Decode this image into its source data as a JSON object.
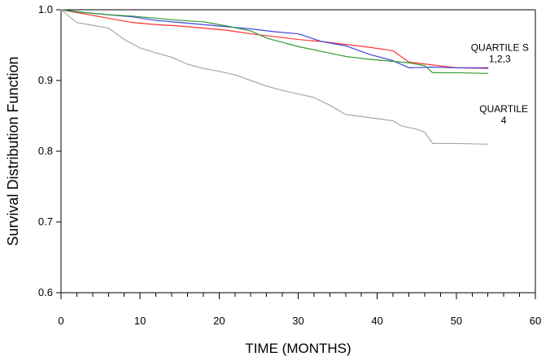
{
  "chart_data": {
    "type": "line",
    "title": "",
    "xlabel": "TIME (MONTHS)",
    "ylabel": "Survival Distribution Function",
    "xlim": [
      0,
      60
    ],
    "ylim": [
      0.6,
      1.0
    ],
    "grid": false,
    "x_major_ticks": [
      0,
      10,
      20,
      30,
      40,
      50,
      60
    ],
    "x_major_tick_labels": [
      "0",
      "10",
      "20",
      "30",
      "40",
      "50",
      "60"
    ],
    "y_major_ticks": [
      0.6,
      0.7,
      0.8,
      0.9,
      1.0
    ],
    "y_major_tick_labels": [
      "0.6",
      "0.7",
      "0.8",
      "0.9",
      "1.0"
    ],
    "annotations": [
      {
        "lines": [
          "QUARTILE S",
          "1,2,3"
        ],
        "x": 55.5,
        "y": 0.942
      },
      {
        "lines": [
          "QUARTILE",
          "4"
        ],
        "x": 56.0,
        "y": 0.855
      }
    ],
    "series": [
      {
        "color": "#ff3333",
        "x": [
          0,
          3,
          6,
          9,
          12,
          15,
          18,
          21,
          24,
          27,
          30,
          33,
          36,
          39,
          42,
          44,
          47,
          50,
          54
        ],
        "y": [
          1.0,
          0.994,
          0.988,
          0.982,
          0.979,
          0.977,
          0.974,
          0.971,
          0.966,
          0.962,
          0.958,
          0.955,
          0.951,
          0.947,
          0.942,
          0.926,
          0.922,
          0.918,
          0.917
        ]
      },
      {
        "color": "#4444dd",
        "x": [
          0,
          3,
          6,
          9,
          12,
          15,
          18,
          21,
          24,
          27,
          30,
          33,
          36,
          39,
          42,
          44,
          47,
          50,
          54
        ],
        "y": [
          1.0,
          0.996,
          0.993,
          0.99,
          0.985,
          0.982,
          0.979,
          0.976,
          0.973,
          0.969,
          0.966,
          0.955,
          0.949,
          0.937,
          0.928,
          0.918,
          0.919,
          0.918,
          0.918
        ]
      },
      {
        "color": "#339933",
        "x": [
          0,
          3,
          6,
          9,
          12,
          15,
          18,
          21,
          24,
          26,
          28,
          30,
          33,
          36,
          39,
          42,
          44,
          46,
          47,
          50,
          54
        ],
        "y": [
          1.0,
          0.996,
          0.993,
          0.991,
          0.988,
          0.985,
          0.983,
          0.977,
          0.97,
          0.96,
          0.954,
          0.948,
          0.941,
          0.934,
          0.93,
          0.927,
          0.925,
          0.921,
          0.911,
          0.911,
          0.91
        ]
      },
      {
        "color": "#a8a8a8",
        "x": [
          0,
          2,
          4,
          6,
          8,
          10,
          12,
          14,
          16,
          18,
          20,
          22,
          24,
          26,
          28,
          30,
          32,
          34,
          36,
          38,
          40,
          42,
          43,
          45,
          46,
          47,
          50,
          54
        ],
        "y": [
          1.0,
          0.982,
          0.978,
          0.974,
          0.958,
          0.946,
          0.939,
          0.933,
          0.923,
          0.917,
          0.913,
          0.908,
          0.9,
          0.892,
          0.886,
          0.881,
          0.876,
          0.865,
          0.852,
          0.849,
          0.846,
          0.843,
          0.836,
          0.831,
          0.827,
          0.811,
          0.811,
          0.81
        ]
      }
    ]
  }
}
